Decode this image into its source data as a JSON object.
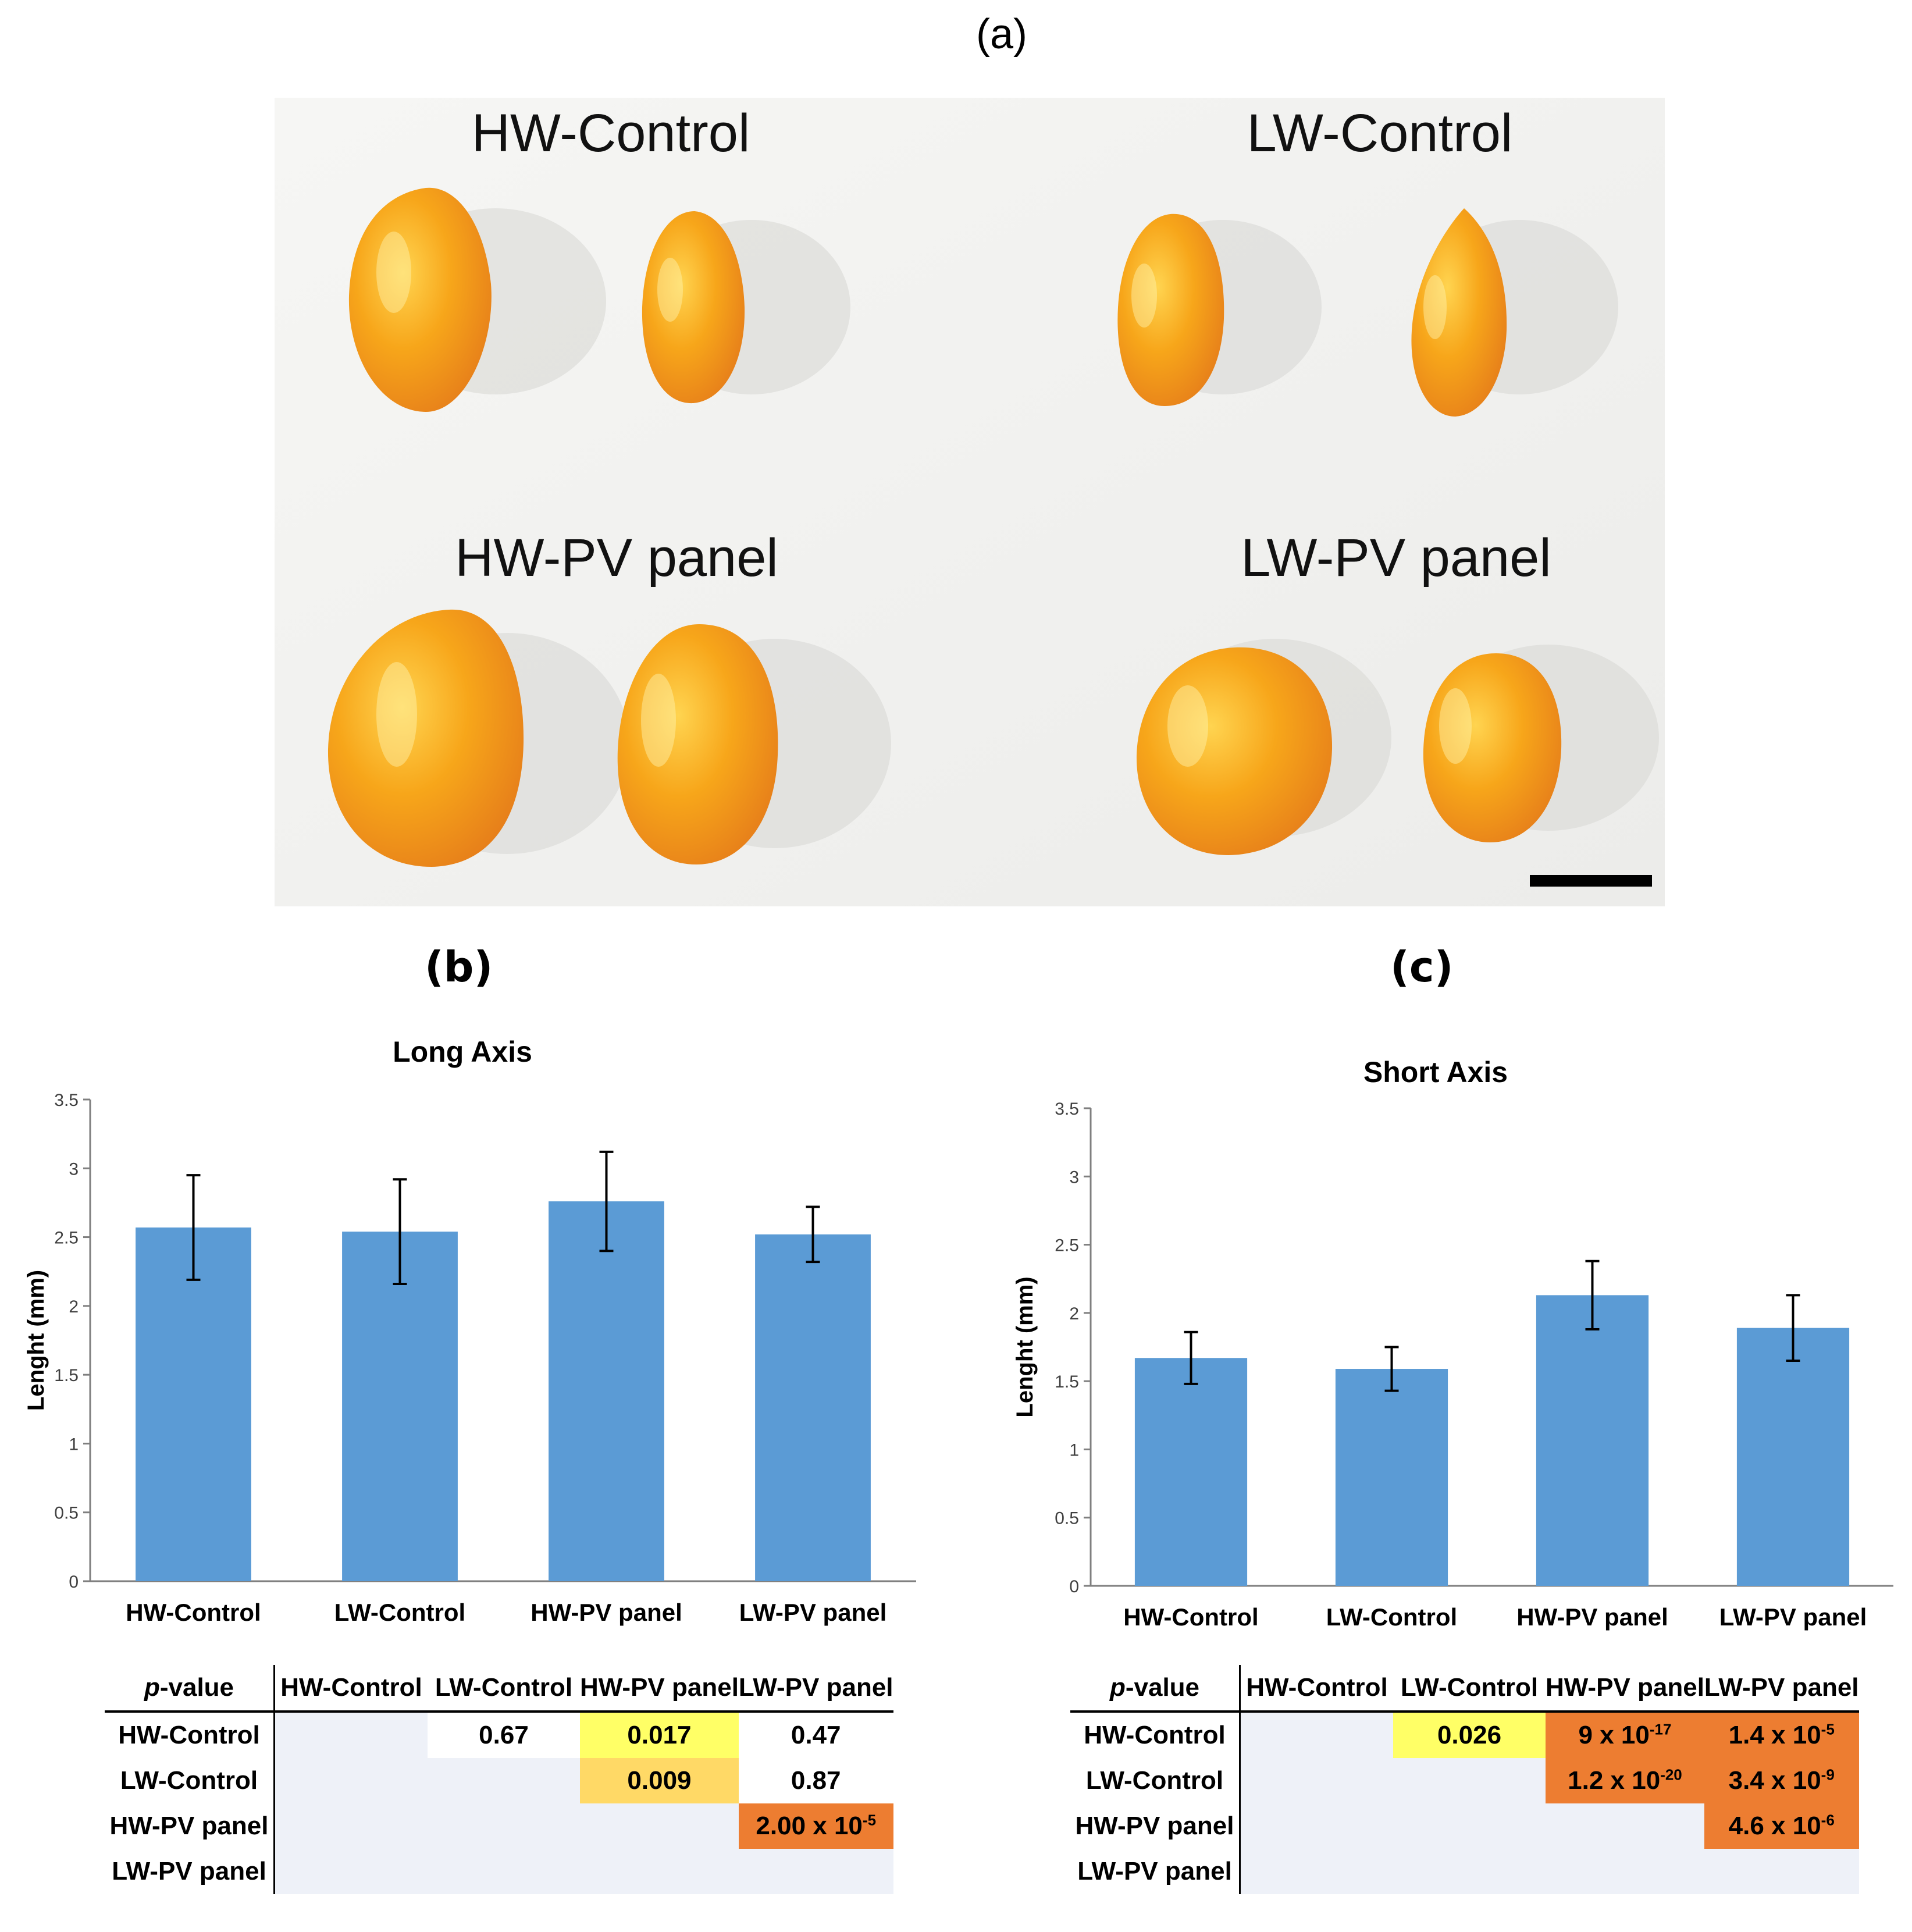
{
  "panel_labels": {
    "a": "(a)",
    "b": "(b)",
    "c": "(c)"
  },
  "photo": {
    "labels": [
      "HW-Control",
      "LW-Control",
      "HW-PV panel",
      "LW-PV panel"
    ],
    "colors": {
      "fruit": "#f7a61a",
      "fruit_dark": "#e4791a",
      "background": "#f3f3f1",
      "scale_bar": "#000000"
    }
  },
  "chart_data": [
    {
      "type": "bar",
      "title": "Long Axis",
      "categories": [
        "HW-Control",
        "LW-Control",
        "HW-PV panel",
        "LW-PV panel"
      ],
      "values": [
        2.57,
        2.54,
        2.76,
        2.52
      ],
      "errors": [
        0.38,
        0.38,
        0.36,
        0.2
      ],
      "ylabel": "Lenght (mm)",
      "xlabel": "",
      "ylim": [
        0,
        3.5
      ],
      "yticks": [
        "0",
        "0.5",
        "1",
        "1.5",
        "2",
        "2.5",
        "3",
        "3.5"
      ],
      "bar_color": "#5b9bd5",
      "grid": false
    },
    {
      "type": "bar",
      "title": "Short Axis",
      "categories": [
        "HW-Control",
        "LW-Control",
        "HW-PV panel",
        "LW-PV panel"
      ],
      "values": [
        1.67,
        1.59,
        2.13,
        1.89
      ],
      "errors": [
        0.19,
        0.16,
        0.25,
        0.24
      ],
      "ylabel": "Lenght (mm)",
      "xlabel": "",
      "ylim": [
        0,
        3.5
      ],
      "yticks": [
        "0",
        "0.5",
        "1",
        "1.5",
        "2",
        "2.5",
        "3",
        "3.5"
      ],
      "bar_color": "#5b9bd5",
      "grid": false
    }
  ],
  "pvalue_tables": {
    "b": {
      "corner_italic": "p",
      "corner_rest": "-value",
      "columns": [
        "HW-Control",
        "LW-Control",
        "HW-PV panel",
        "LW-PV panel"
      ],
      "rows": [
        {
          "label": "HW-Control",
          "cells": [
            {
              "text": "",
              "style": "blank"
            },
            {
              "text": "0.67",
              "style": "white"
            },
            {
              "text": "0.017",
              "style": "yellow"
            },
            {
              "text": "0.47",
              "style": "white"
            }
          ]
        },
        {
          "label": "LW-Control",
          "cells": [
            {
              "text": "",
              "style": "blank"
            },
            {
              "text": "",
              "style": "blank"
            },
            {
              "text": "0.009",
              "style": "lightorange"
            },
            {
              "text": "0.87",
              "style": "white"
            }
          ]
        },
        {
          "label": "HW-PV panel",
          "cells": [
            {
              "text": "",
              "style": "blank"
            },
            {
              "text": "",
              "style": "blank"
            },
            {
              "text": "",
              "style": "blank"
            },
            {
              "text": "2.00 x 10",
              "sup": "-5",
              "style": "orange"
            }
          ]
        },
        {
          "label": "LW-PV panel",
          "cells": [
            {
              "text": "",
              "style": "blank"
            },
            {
              "text": "",
              "style": "blank"
            },
            {
              "text": "",
              "style": "blank"
            },
            {
              "text": "",
              "style": "blank"
            }
          ]
        }
      ]
    },
    "c": {
      "corner_italic": "p",
      "corner_rest": "-value",
      "columns": [
        "HW-Control",
        "LW-Control",
        "HW-PV panel",
        "LW-PV panel"
      ],
      "rows": [
        {
          "label": "HW-Control",
          "cells": [
            {
              "text": "",
              "style": "blank"
            },
            {
              "text": "0.026",
              "style": "yellow"
            },
            {
              "text": "9 x 10",
              "sup": "-17",
              "style": "orange"
            },
            {
              "text": "1.4 x 10",
              "sup": "-5",
              "style": "orange"
            }
          ]
        },
        {
          "label": "LW-Control",
          "cells": [
            {
              "text": "",
              "style": "blank"
            },
            {
              "text": "",
              "style": "blank"
            },
            {
              "text": "1.2 x 10",
              "sup": "-20",
              "style": "orange"
            },
            {
              "text": "3.4 x 10",
              "sup": "-9",
              "style": "orange"
            }
          ]
        },
        {
          "label": "HW-PV panel",
          "cells": [
            {
              "text": "",
              "style": "blank"
            },
            {
              "text": "",
              "style": "blank"
            },
            {
              "text": "",
              "style": "blank"
            },
            {
              "text": "4.6 x 10",
              "sup": "-6",
              "style": "orange"
            }
          ]
        },
        {
          "label": "LW-PV panel",
          "cells": [
            {
              "text": "",
              "style": "blank"
            },
            {
              "text": "",
              "style": "blank"
            },
            {
              "text": "",
              "style": "blank"
            },
            {
              "text": "",
              "style": "blank"
            }
          ]
        }
      ]
    }
  }
}
